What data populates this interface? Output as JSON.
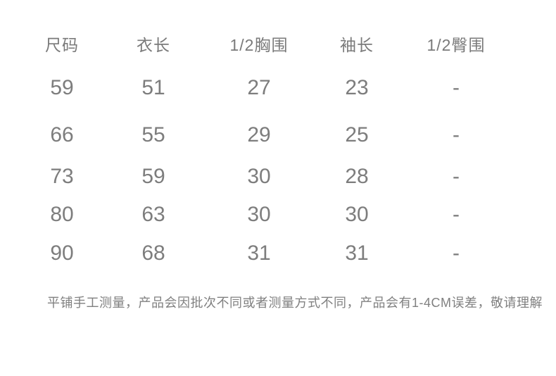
{
  "chart_data": {
    "type": "table",
    "title": "",
    "columns": [
      "尺码",
      "衣长",
      "1/2胸围",
      "袖长",
      "1/2臀围"
    ],
    "rows": [
      [
        "59",
        "51",
        "27",
        "23",
        "-"
      ],
      [
        "66",
        "55",
        "29",
        "25",
        "-"
      ],
      [
        "73",
        "59",
        "30",
        "28",
        "-"
      ],
      [
        "80",
        "63",
        "30",
        "30",
        "-"
      ],
      [
        "90",
        "68",
        "31",
        "31",
        "-"
      ]
    ],
    "note": "平铺手工测量，产品会因批次不同或者测量方式不同，产品会有1-4CM误差，敬请理解",
    "layout": {
      "borders": "none",
      "grid": "off",
      "alignment": "center"
    }
  },
  "colors": {
    "background": "#ffffff",
    "table_text": "#7a7a7a",
    "note_text": "#808080"
  }
}
